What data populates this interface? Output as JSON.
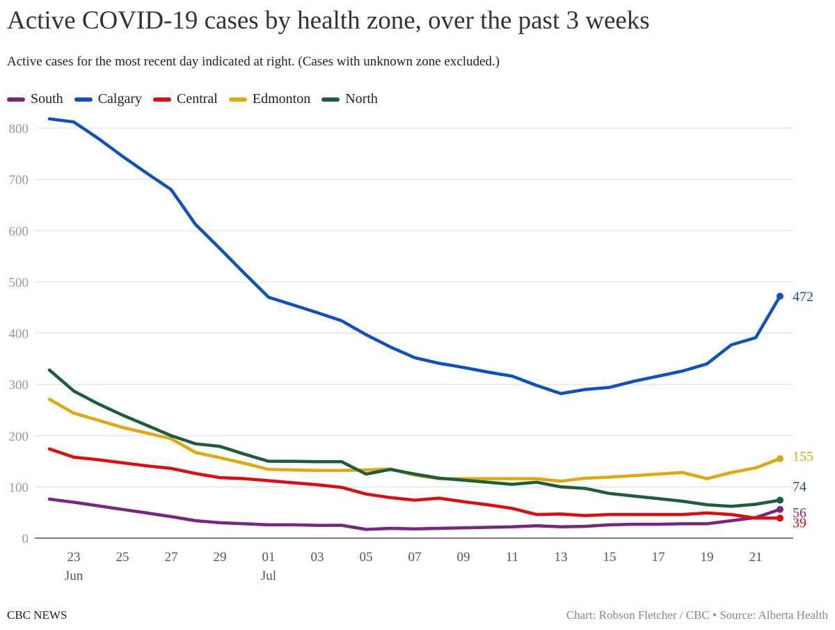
{
  "header": {
    "title": "Active COVID-19 cases by health zone, over the past 3 weeks",
    "subtitle": "Active cases for the most recent day indicated at right. (Cases with unknown zone excluded.)"
  },
  "footer": {
    "left": "CBC NEWS",
    "right": "Chart: Robson Fletcher / CBC • Source: Alberta Health"
  },
  "chart_data": {
    "type": "line",
    "title": "Active COVID-19 cases by health zone, over the past 3 weeks",
    "subtitle": "Active cases for the most recent day indicated at right. (Cases with unknown zone excluded.)",
    "x": [
      "2021-06-22",
      "2021-06-23",
      "2021-06-24",
      "2021-06-25",
      "2021-06-26",
      "2021-06-27",
      "2021-06-28",
      "2021-06-29",
      "2021-06-30",
      "2021-07-01",
      "2021-07-02",
      "2021-07-03",
      "2021-07-04",
      "2021-07-05",
      "2021-07-06",
      "2021-07-07",
      "2021-07-08",
      "2021-07-09",
      "2021-07-10",
      "2021-07-11",
      "2021-07-12",
      "2021-07-13",
      "2021-07-14",
      "2021-07-15",
      "2021-07-16",
      "2021-07-17",
      "2021-07-18",
      "2021-07-19",
      "2021-07-20",
      "2021-07-21",
      "2021-07-22"
    ],
    "x_ticks": [
      {
        "date": "2021-06-23",
        "label": "23",
        "sublabel": "Jun"
      },
      {
        "date": "2021-06-25",
        "label": "25",
        "sublabel": ""
      },
      {
        "date": "2021-06-27",
        "label": "27",
        "sublabel": ""
      },
      {
        "date": "2021-06-29",
        "label": "29",
        "sublabel": ""
      },
      {
        "date": "2021-07-01",
        "label": "01",
        "sublabel": "Jul"
      },
      {
        "date": "2021-07-03",
        "label": "03",
        "sublabel": ""
      },
      {
        "date": "2021-07-05",
        "label": "05",
        "sublabel": ""
      },
      {
        "date": "2021-07-07",
        "label": "07",
        "sublabel": ""
      },
      {
        "date": "2021-07-09",
        "label": "09",
        "sublabel": ""
      },
      {
        "date": "2021-07-11",
        "label": "11",
        "sublabel": ""
      },
      {
        "date": "2021-07-13",
        "label": "13",
        "sublabel": ""
      },
      {
        "date": "2021-07-15",
        "label": "15",
        "sublabel": ""
      },
      {
        "date": "2021-07-17",
        "label": "17",
        "sublabel": ""
      },
      {
        "date": "2021-07-19",
        "label": "19",
        "sublabel": ""
      },
      {
        "date": "2021-07-21",
        "label": "21",
        "sublabel": ""
      }
    ],
    "y_ticks": [
      0,
      100,
      200,
      300,
      400,
      500,
      600,
      700,
      800
    ],
    "ylim": [
      0,
      820
    ],
    "grid": true,
    "legend_position": "top-left",
    "series": [
      {
        "name": "South",
        "color": "#7b2582",
        "values": [
          76,
          70,
          63,
          56,
          49,
          42,
          34,
          30,
          28,
          26,
          26,
          25,
          25,
          17,
          19,
          18,
          19,
          20,
          21,
          22,
          24,
          22,
          23,
          26,
          27,
          27,
          28,
          28,
          34,
          40,
          56
        ],
        "end_label": "56"
      },
      {
        "name": "Calgary",
        "color": "#0b50c4",
        "values": [
          818,
          812,
          780,
          745,
          712,
          680,
          612,
          565,
          517,
          470,
          455,
          440,
          424,
          397,
          373,
          352,
          341,
          333,
          324,
          316,
          298,
          282,
          290,
          294,
          306,
          316,
          326,
          340,
          377,
          391,
          472
        ],
        "end_label": "472"
      },
      {
        "name": "Central",
        "color": "#de0d0d",
        "values": [
          174,
          158,
          153,
          147,
          141,
          136,
          126,
          118,
          116,
          112,
          108,
          104,
          99,
          86,
          79,
          74,
          78,
          71,
          65,
          58,
          46,
          47,
          44,
          46,
          46,
          46,
          46,
          49,
          46,
          39,
          39
        ],
        "end_label": "39"
      },
      {
        "name": "Edmonton",
        "color": "#e0a80c",
        "values": [
          271,
          244,
          230,
          216,
          205,
          194,
          167,
          157,
          146,
          134,
          133,
          132,
          132,
          133,
          135,
          123,
          116,
          116,
          116,
          116,
          116,
          111,
          117,
          119,
          122,
          125,
          128,
          116,
          128,
          137,
          155
        ],
        "end_label": "155"
      },
      {
        "name": "North",
        "color": "#1c5e3c",
        "values": [
          328,
          287,
          262,
          240,
          220,
          200,
          184,
          179,
          164,
          150,
          150,
          149,
          149,
          125,
          134,
          125,
          117,
          113,
          109,
          105,
          109,
          100,
          97,
          87,
          82,
          77,
          72,
          65,
          62,
          66,
          74
        ],
        "end_label": "74"
      }
    ]
  }
}
